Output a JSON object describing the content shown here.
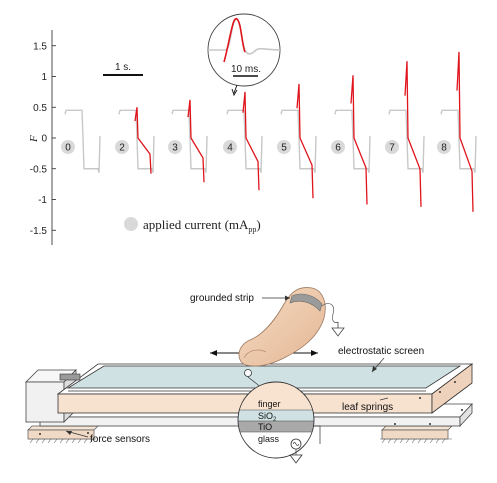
{
  "chart_data": {
    "type": "line",
    "ylabel": "F",
    "ylim": [
      -1.75,
      1.75
    ],
    "yticks": [
      -1.5,
      -1,
      -0.5,
      0,
      0.5,
      1,
      1.5
    ],
    "ytick_labels": [
      "-1.5",
      "-1",
      "-0.5",
      "0",
      "0.5",
      "1",
      "1.5"
    ],
    "time_scale_label": "1 s.",
    "inset_scale_label": "10 ms.",
    "legend_label": "applied current (mA",
    "legend_sub": "pp",
    "legend_close": ")",
    "series": [
      {
        "current": "0",
        "peak_pos": 0.0,
        "peak_neg": 0.0
      },
      {
        "current": "2",
        "peak_pos": 0.5,
        "peak_neg": -0.58
      },
      {
        "current": "3",
        "peak_pos": 0.62,
        "peak_neg": -0.72
      },
      {
        "current": "4",
        "peak_pos": 0.75,
        "peak_neg": -0.85
      },
      {
        "current": "5",
        "peak_pos": 0.88,
        "peak_neg": -0.98
      },
      {
        "current": "6",
        "peak_pos": 1.02,
        "peak_neg": -1.08
      },
      {
        "current": "7",
        "peak_pos": 1.25,
        "peak_neg": -1.12
      },
      {
        "current": "8",
        "peak_pos": 1.4,
        "peak_neg": -1.2
      }
    ],
    "colors": {
      "baseline": "#c8c8c8",
      "burst": "#e0141c",
      "marker": "#d9d9d9"
    }
  },
  "diagram": {
    "labels": {
      "grounded_strip": "grounded strip",
      "electrostatic_screen": "electrostatic screen",
      "leaf_springs": "leaf springs",
      "force_sensors": "force sensors"
    },
    "layers": {
      "finger": "finger",
      "sio2": "SiO",
      "sio2_sub": "2",
      "tio": "TiO",
      "glass": "glass"
    }
  }
}
